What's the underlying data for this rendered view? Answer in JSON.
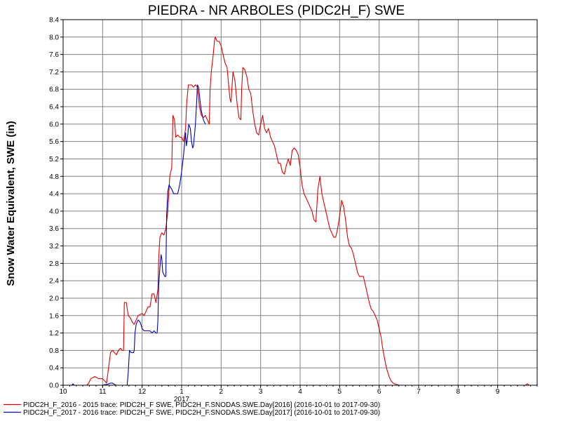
{
  "chart_data": {
    "type": "line",
    "title": "PIEDRA - NR ARBOLES (PIDC2H_F) SWE",
    "ylabel": "Snow Water Equivalent, SWE (in)",
    "xlabel": "",
    "ylim": [
      0,
      8.4
    ],
    "yticks": [
      "0.0",
      "0.4",
      "0.8",
      "1.2",
      "1.6",
      "2.0",
      "2.4",
      "2.8",
      "3.2",
      "3.6",
      "4.0",
      "4.4",
      "4.8",
      "5.2",
      "5.6",
      "6.0",
      "6.4",
      "6.8",
      "7.2",
      "7.6",
      "8.0",
      "8.4"
    ],
    "xticks": [
      "10",
      "11",
      "12",
      "1",
      "2",
      "3",
      "4",
      "5",
      "6",
      "7",
      "8",
      "9"
    ],
    "year_label": "2017",
    "grid": true,
    "legend_position": "bottom-left",
    "x_unit_note": "x values are months since Oct 1 of water year (2016-10-01 to 2017-09-30)",
    "series": [
      {
        "name": "PIDC2H_F_2016 - 2015 trace: PIDC2H_F SWE, PIDC2H_F.SNODAS.SWE.Day[2016] (2016-10-01 to 2017-09-30)",
        "color": "#e00000",
        "points": [
          [
            0.0,
            0
          ],
          [
            0.6,
            0
          ],
          [
            0.65,
            0.05
          ],
          [
            0.7,
            0.15
          ],
          [
            0.8,
            0.2
          ],
          [
            0.9,
            0.15
          ],
          [
            1.0,
            0.15
          ],
          [
            1.05,
            0.1
          ],
          [
            1.1,
            0.05
          ],
          [
            1.15,
            0.4
          ],
          [
            1.2,
            0.75
          ],
          [
            1.25,
            0.8
          ],
          [
            1.3,
            0.75
          ],
          [
            1.35,
            0.7
          ],
          [
            1.4,
            0.8
          ],
          [
            1.45,
            0.85
          ],
          [
            1.5,
            0.8
          ],
          [
            1.53,
            0.8
          ],
          [
            1.55,
            1.9
          ],
          [
            1.6,
            1.9
          ],
          [
            1.65,
            1.6
          ],
          [
            1.7,
            1.55
          ],
          [
            1.75,
            1.45
          ],
          [
            1.8,
            1.4
          ],
          [
            1.85,
            1.5
          ],
          [
            1.9,
            1.6
          ],
          [
            2.0,
            1.65
          ],
          [
            2.05,
            1.6
          ],
          [
            2.1,
            1.7
          ],
          [
            2.15,
            1.8
          ],
          [
            2.2,
            1.8
          ],
          [
            2.25,
            2.1
          ],
          [
            2.3,
            2.1
          ],
          [
            2.35,
            1.9
          ],
          [
            2.4,
            2.2
          ],
          [
            2.42,
            2.9
          ],
          [
            2.45,
            3.4
          ],
          [
            2.5,
            3.5
          ],
          [
            2.55,
            3.45
          ],
          [
            2.6,
            3.6
          ],
          [
            2.65,
            4.0
          ],
          [
            2.7,
            4.8
          ],
          [
            2.75,
            5.0
          ],
          [
            2.78,
            6.2
          ],
          [
            2.82,
            6.1
          ],
          [
            2.85,
            5.7
          ],
          [
            2.9,
            5.75
          ],
          [
            2.95,
            5.7
          ],
          [
            3.0,
            5.7
          ],
          [
            3.05,
            5.6
          ],
          [
            3.1,
            5.9
          ],
          [
            3.13,
            6.5
          ],
          [
            3.17,
            6.9
          ],
          [
            3.25,
            6.9
          ],
          [
            3.3,
            6.85
          ],
          [
            3.35,
            6.9
          ],
          [
            3.4,
            6.85
          ],
          [
            3.45,
            6.4
          ],
          [
            3.5,
            6.2
          ],
          [
            3.55,
            6.15
          ],
          [
            3.6,
            6.2
          ],
          [
            3.65,
            6.1
          ],
          [
            3.7,
            6.0
          ],
          [
            3.72,
            6.8
          ],
          [
            3.75,
            7.2
          ],
          [
            3.8,
            7.6
          ],
          [
            3.83,
            7.9
          ],
          [
            3.85,
            8.0
          ],
          [
            3.9,
            7.9
          ],
          [
            3.95,
            7.9
          ],
          [
            4.0,
            7.8
          ],
          [
            4.05,
            7.6
          ],
          [
            4.1,
            7.4
          ],
          [
            4.15,
            7.3
          ],
          [
            4.18,
            7.0
          ],
          [
            4.22,
            6.6
          ],
          [
            4.25,
            6.5
          ],
          [
            4.3,
            7.2
          ],
          [
            4.35,
            7.0
          ],
          [
            4.4,
            6.5
          ],
          [
            4.45,
            6.15
          ],
          [
            4.5,
            6.1
          ],
          [
            4.52,
            6.8
          ],
          [
            4.55,
            7.3
          ],
          [
            4.6,
            7.25
          ],
          [
            4.65,
            7.1
          ],
          [
            4.7,
            6.8
          ],
          [
            4.75,
            6.7
          ],
          [
            4.8,
            6.3
          ],
          [
            4.85,
            6.0
          ],
          [
            4.9,
            5.8
          ],
          [
            4.95,
            5.75
          ],
          [
            5.0,
            6.0
          ],
          [
            5.05,
            6.2
          ],
          [
            5.1,
            5.9
          ],
          [
            5.15,
            5.8
          ],
          [
            5.2,
            5.9
          ],
          [
            5.25,
            5.7
          ],
          [
            5.3,
            5.6
          ],
          [
            5.35,
            5.5
          ],
          [
            5.4,
            5.3
          ],
          [
            5.45,
            5.1
          ],
          [
            5.5,
            5.1
          ],
          [
            5.55,
            4.9
          ],
          [
            5.6,
            4.85
          ],
          [
            5.65,
            5.05
          ],
          [
            5.7,
            5.2
          ],
          [
            5.75,
            5.05
          ],
          [
            5.8,
            5.4
          ],
          [
            5.85,
            5.45
          ],
          [
            5.9,
            5.4
          ],
          [
            5.95,
            5.3
          ],
          [
            6.0,
            5.0
          ],
          [
            6.05,
            4.6
          ],
          [
            6.1,
            4.4
          ],
          [
            6.15,
            4.3
          ],
          [
            6.2,
            4.2
          ],
          [
            6.25,
            4.1
          ],
          [
            6.3,
            4.0
          ],
          [
            6.35,
            3.8
          ],
          [
            6.4,
            3.75
          ],
          [
            6.45,
            4.5
          ],
          [
            6.5,
            4.8
          ],
          [
            6.55,
            4.4
          ],
          [
            6.6,
            4.2
          ],
          [
            6.65,
            4.0
          ],
          [
            6.7,
            3.8
          ],
          [
            6.75,
            3.6
          ],
          [
            6.8,
            3.5
          ],
          [
            6.85,
            3.4
          ],
          [
            6.9,
            3.4
          ],
          [
            6.95,
            3.6
          ],
          [
            7.0,
            3.9
          ],
          [
            7.05,
            4.25
          ],
          [
            7.1,
            4.1
          ],
          [
            7.15,
            3.8
          ],
          [
            7.2,
            3.4
          ],
          [
            7.25,
            3.2
          ],
          [
            7.3,
            3.15
          ],
          [
            7.35,
            3.0
          ],
          [
            7.4,
            2.8
          ],
          [
            7.45,
            2.6
          ],
          [
            7.5,
            2.5
          ],
          [
            7.55,
            2.5
          ],
          [
            7.6,
            2.5
          ],
          [
            7.65,
            2.3
          ],
          [
            7.7,
            2.1
          ],
          [
            7.75,
            1.9
          ],
          [
            7.8,
            1.75
          ],
          [
            7.85,
            1.7
          ],
          [
            7.9,
            1.6
          ],
          [
            7.95,
            1.5
          ],
          [
            8.0,
            1.3
          ],
          [
            8.05,
            1.1
          ],
          [
            8.08,
            0.9
          ],
          [
            8.12,
            0.7
          ],
          [
            8.16,
            0.5
          ],
          [
            8.2,
            0.35
          ],
          [
            8.25,
            0.2
          ],
          [
            8.3,
            0.1
          ],
          [
            8.35,
            0.05
          ],
          [
            8.4,
            0.03
          ],
          [
            8.5,
            0
          ],
          [
            11.7,
            0
          ],
          [
            11.75,
            0.03
          ],
          [
            11.8,
            0
          ]
        ]
      },
      {
        "name": "PIDC2H_F_2017 - 2016 trace: PIDC2H_F SWE, PIDC2H_F.SNODAS.SWE.Day[2017] (2016-10-01 to 2017-09-30)",
        "color": "#0000c0",
        "points": [
          [
            0.0,
            0
          ],
          [
            0.22,
            0
          ],
          [
            0.25,
            0.03
          ],
          [
            0.28,
            0
          ],
          [
            1.0,
            0
          ],
          [
            1.1,
            0.02
          ],
          [
            1.15,
            0.03
          ],
          [
            1.2,
            0.05
          ],
          [
            1.25,
            0.05
          ],
          [
            1.3,
            0.02
          ],
          [
            1.35,
            0
          ],
          [
            1.62,
            0
          ],
          [
            1.65,
            0.3
          ],
          [
            1.68,
            0.8
          ],
          [
            1.72,
            0.75
          ],
          [
            1.78,
            0.75
          ],
          [
            1.8,
            0.8
          ],
          [
            1.82,
            1.2
          ],
          [
            1.85,
            1.4
          ],
          [
            1.9,
            1.5
          ],
          [
            1.95,
            1.45
          ],
          [
            2.0,
            1.3
          ],
          [
            2.05,
            1.25
          ],
          [
            2.1,
            1.25
          ],
          [
            2.2,
            1.25
          ],
          [
            2.25,
            1.2
          ],
          [
            2.3,
            1.25
          ],
          [
            2.35,
            1.2
          ],
          [
            2.38,
            1.2
          ],
          [
            2.4,
            1.5
          ],
          [
            2.42,
            2.3
          ],
          [
            2.45,
            2.7
          ],
          [
            2.48,
            3.0
          ],
          [
            2.5,
            2.9
          ],
          [
            2.52,
            2.6
          ],
          [
            2.55,
            2.55
          ],
          [
            2.57,
            2.5
          ],
          [
            2.6,
            2.5
          ],
          [
            2.62,
            3.9
          ],
          [
            2.65,
            4.45
          ],
          [
            2.68,
            4.6
          ],
          [
            2.72,
            4.55
          ],
          [
            2.75,
            4.5
          ],
          [
            2.8,
            4.4
          ],
          [
            2.85,
            4.4
          ],
          [
            2.9,
            4.4
          ],
          [
            2.95,
            4.6
          ],
          [
            3.0,
            4.9
          ],
          [
            3.05,
            5.3
          ],
          [
            3.08,
            5.6
          ],
          [
            3.1,
            5.8
          ],
          [
            3.12,
            5.5
          ],
          [
            3.15,
            5.7
          ],
          [
            3.18,
            6.0
          ],
          [
            3.22,
            5.9
          ],
          [
            3.25,
            5.6
          ],
          [
            3.28,
            5.45
          ],
          [
            3.3,
            5.5
          ],
          [
            3.35,
            6.0
          ],
          [
            3.38,
            6.5
          ],
          [
            3.4,
            6.9
          ],
          [
            3.43,
            6.85
          ],
          [
            3.47,
            6.5
          ],
          [
            3.5,
            6.3
          ],
          [
            3.55,
            6.1
          ],
          [
            3.6,
            6.0
          ]
        ]
      }
    ]
  }
}
